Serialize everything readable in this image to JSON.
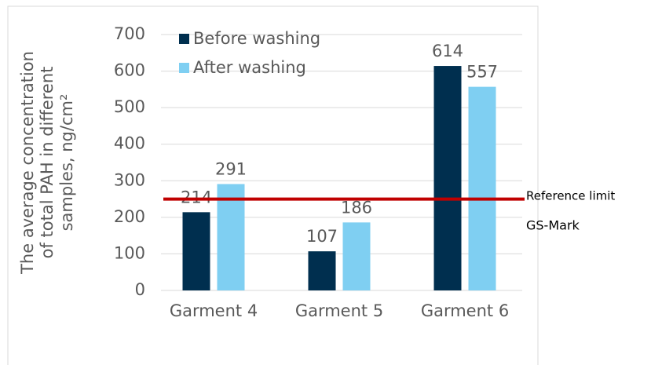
{
  "chart_data": {
    "type": "bar",
    "ylabel": [
      "The average concentration",
      "of total PAH in different",
      "samples, ng/cm²"
    ],
    "categories": [
      "Garment 4",
      "Garment 5",
      "Garment 6"
    ],
    "series": [
      {
        "name": "Before washing",
        "color": "#002f4f",
        "values": [
          214,
          107,
          614
        ]
      },
      {
        "name": "After washing",
        "color": "#7fcff2",
        "values": [
          291,
          186,
          557
        ]
      }
    ],
    "ylim": [
      0,
      700
    ],
    "yticks": [
      0,
      100,
      200,
      300,
      400,
      500,
      600,
      700
    ],
    "grid": true,
    "legend": "upper left",
    "reference_line": {
      "value": 250,
      "label": "Reference limit",
      "sublabel": "GS-Mark",
      "color": "#c00000"
    }
  }
}
